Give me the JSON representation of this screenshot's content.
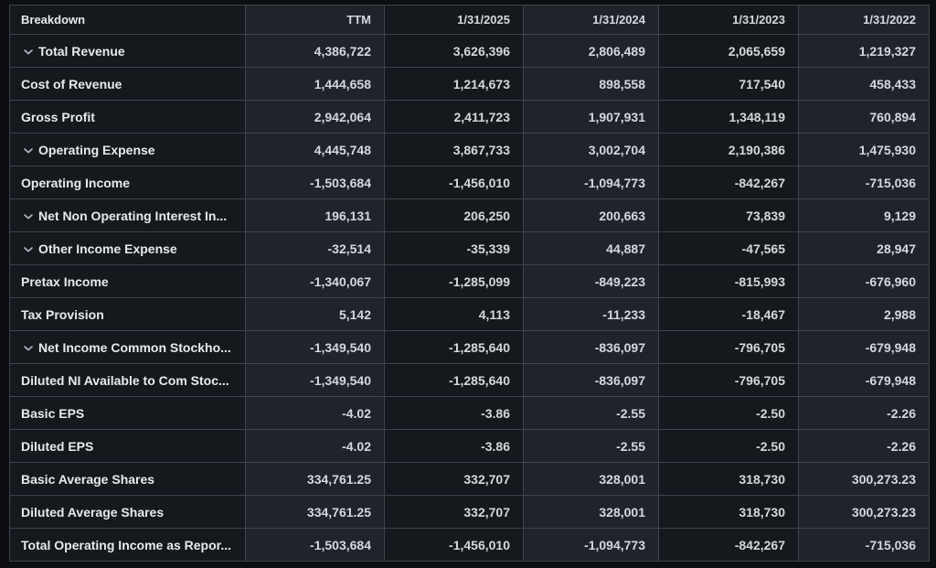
{
  "colors": {
    "page_background": "#0c0e11",
    "cell_dark": "#15181d",
    "cell_light": "#1f242b",
    "border": "#3d444d",
    "header_text": "#eef0f3",
    "label_text": "#e7eaee",
    "value_text": "#d4d8dd",
    "chevron": "#b6bcc4"
  },
  "icons": {
    "expand_row": "chevron-down-icon"
  },
  "table": {
    "columns": [
      "Breakdown",
      "TTM",
      "1/31/2025",
      "1/31/2024",
      "1/31/2023",
      "1/31/2022"
    ],
    "rows": [
      {
        "label": "Total Revenue",
        "expandable": true,
        "values": [
          "4,386,722",
          "3,626,396",
          "2,806,489",
          "2,065,659",
          "1,219,327"
        ]
      },
      {
        "label": "Cost of Revenue",
        "expandable": false,
        "values": [
          "1,444,658",
          "1,214,673",
          "898,558",
          "717,540",
          "458,433"
        ]
      },
      {
        "label": "Gross Profit",
        "expandable": false,
        "values": [
          "2,942,064",
          "2,411,723",
          "1,907,931",
          "1,348,119",
          "760,894"
        ]
      },
      {
        "label": "Operating Expense",
        "expandable": true,
        "values": [
          "4,445,748",
          "3,867,733",
          "3,002,704",
          "2,190,386",
          "1,475,930"
        ]
      },
      {
        "label": "Operating Income",
        "expandable": false,
        "values": [
          "-1,503,684",
          "-1,456,010",
          "-1,094,773",
          "-842,267",
          "-715,036"
        ]
      },
      {
        "label": "Net Non Operating Interest In...",
        "expandable": true,
        "values": [
          "196,131",
          "206,250",
          "200,663",
          "73,839",
          "9,129"
        ]
      },
      {
        "label": "Other Income Expense",
        "expandable": true,
        "values": [
          "-32,514",
          "-35,339",
          "44,887",
          "-47,565",
          "28,947"
        ]
      },
      {
        "label": "Pretax Income",
        "expandable": false,
        "values": [
          "-1,340,067",
          "-1,285,099",
          "-849,223",
          "-815,993",
          "-676,960"
        ]
      },
      {
        "label": "Tax Provision",
        "expandable": false,
        "values": [
          "5,142",
          "4,113",
          "-11,233",
          "-18,467",
          "2,988"
        ]
      },
      {
        "label": "Net Income Common Stockho...",
        "expandable": true,
        "values": [
          "-1,349,540",
          "-1,285,640",
          "-836,097",
          "-796,705",
          "-679,948"
        ]
      },
      {
        "label": "Diluted NI Available to Com Stoc...",
        "expandable": false,
        "values": [
          "-1,349,540",
          "-1,285,640",
          "-836,097",
          "-796,705",
          "-679,948"
        ]
      },
      {
        "label": "Basic EPS",
        "expandable": false,
        "values": [
          "-4.02",
          "-3.86",
          "-2.55",
          "-2.50",
          "-2.26"
        ]
      },
      {
        "label": "Diluted EPS",
        "expandable": false,
        "values": [
          "-4.02",
          "-3.86",
          "-2.55",
          "-2.50",
          "-2.26"
        ]
      },
      {
        "label": "Basic Average Shares",
        "expandable": false,
        "values": [
          "334,761.25",
          "332,707",
          "328,001",
          "318,730",
          "300,273.23"
        ]
      },
      {
        "label": "Diluted Average Shares",
        "expandable": false,
        "values": [
          "334,761.25",
          "332,707",
          "328,001",
          "318,730",
          "300,273.23"
        ]
      },
      {
        "label": "Total Operating Income as Repor...",
        "expandable": false,
        "values": [
          "-1,503,684",
          "-1,456,010",
          "-1,094,773",
          "-842,267",
          "-715,036"
        ]
      }
    ]
  }
}
